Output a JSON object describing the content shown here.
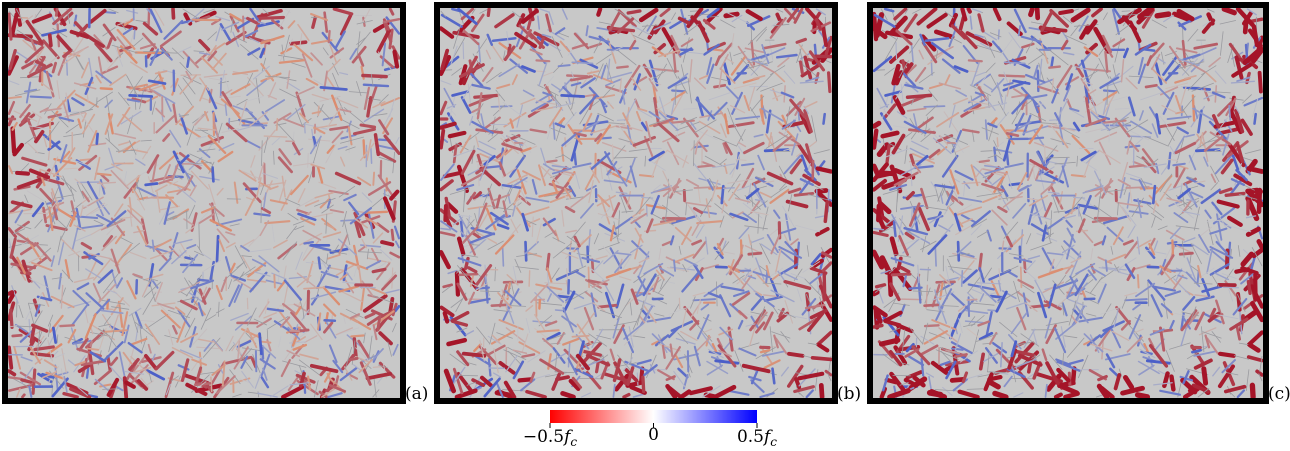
{
  "panels": [
    {
      "label": "(a)"
    },
    {
      "label": "(b)"
    },
    {
      "label": "(c)"
    }
  ],
  "colorbar": {
    "labels": [
      {
        "number": "−0.5",
        "symbol": "f",
        "subscript": "c"
      },
      {
        "number": "0"
      },
      {
        "number": "0.5",
        "symbol": "f",
        "subscript": "c"
      }
    ]
  }
}
